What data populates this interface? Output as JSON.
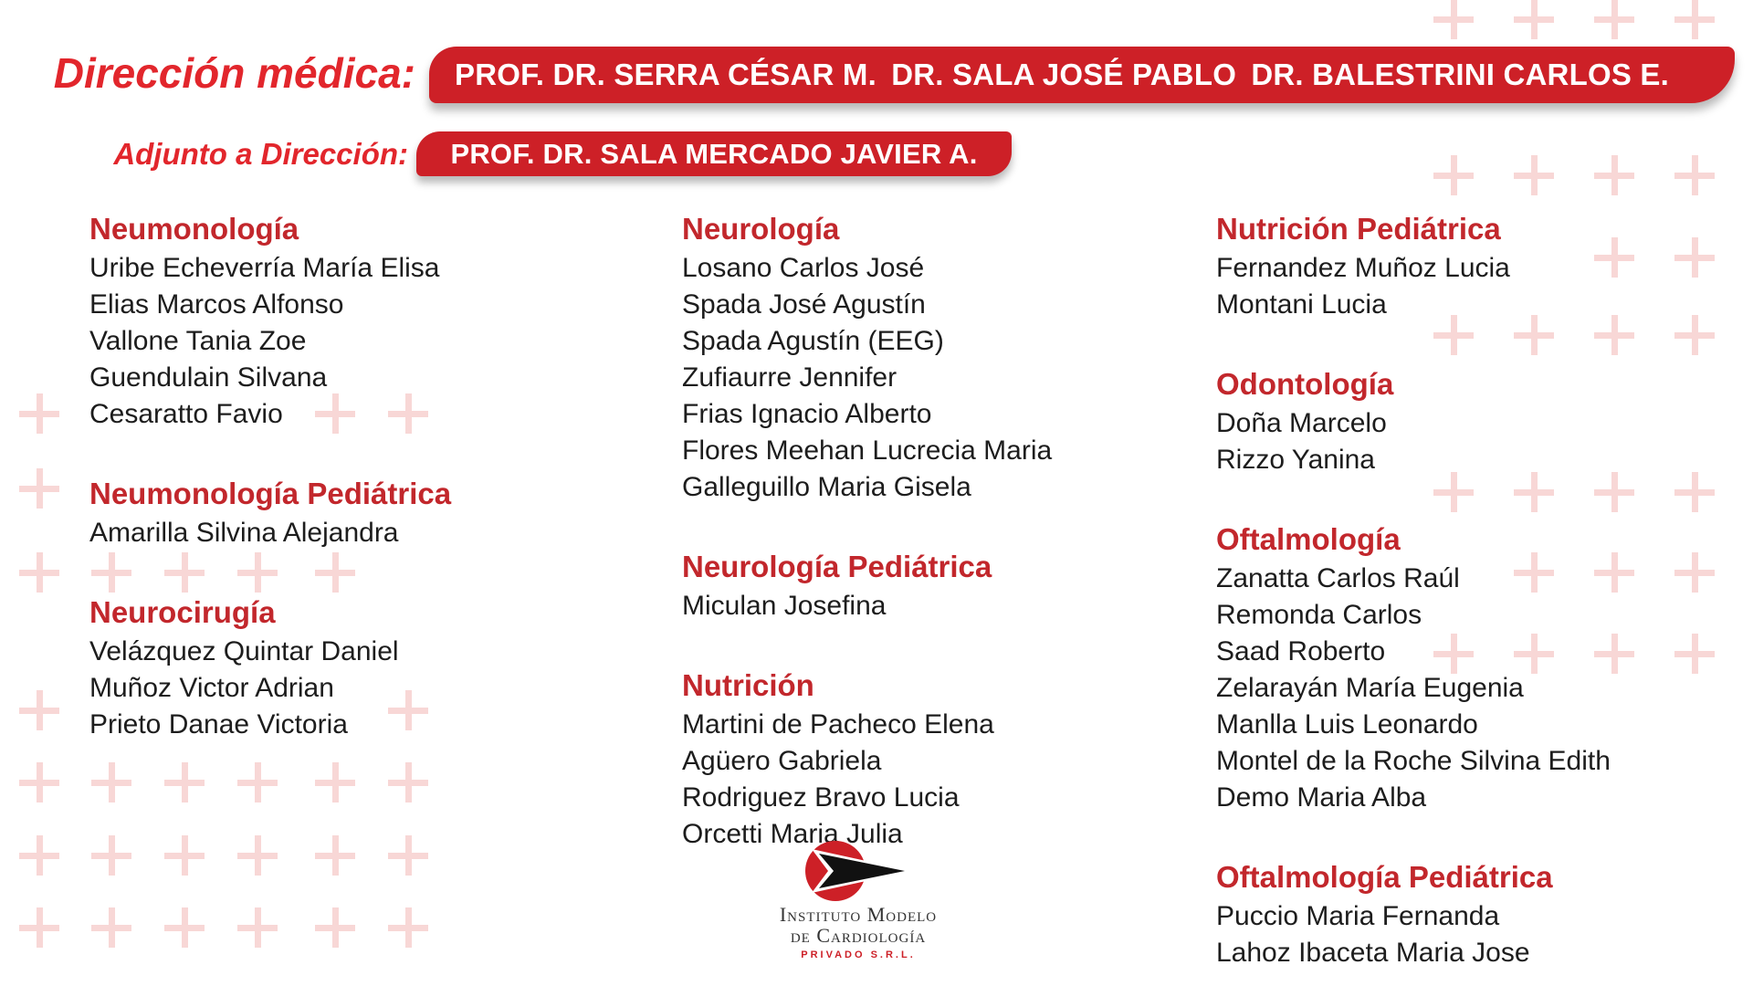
{
  "colors": {
    "banner_red": "#cd2027",
    "label_red": "#e2262c",
    "header_red": "#c2272c",
    "body_text": "#1d1d1d",
    "plus_pink": "#f8d7d6",
    "logo_red": "#cd2027"
  },
  "header": {
    "direccion_label": "Dirección médica:",
    "direccion_names": [
      "PROF. DR. SERRA CÉSAR M.",
      "DR. SALA JOSÉ PABLO",
      "DR. BALESTRINI CARLOS E."
    ],
    "adjunto_label": "Adjunto a Dirección:",
    "adjunto_name": "PROF. DR. SALA MERCADO JAVIER A."
  },
  "columns": [
    {
      "sections": [
        {
          "title": "Neumonología",
          "names": [
            "Uribe Echeverría María Elisa",
            "Elias Marcos Alfonso",
            "Vallone Tania Zoe",
            "Guendulain Silvana",
            "Cesaratto Favio"
          ]
        },
        {
          "title": "Neumonología Pediátrica",
          "names": [
            "Amarilla Silvina Alejandra"
          ]
        },
        {
          "title": "Neurocirugía",
          "names": [
            "Velázquez Quintar Daniel",
            "Muñoz Victor Adrian",
            "Prieto Danae Victoria"
          ]
        }
      ]
    },
    {
      "sections": [
        {
          "title": "Neurología",
          "names": [
            "Losano Carlos José",
            "Spada José Agustín",
            "Spada Agustín (EEG)",
            "Zufiaurre Jennifer",
            "Frias Ignacio Alberto",
            "Flores Meehan Lucrecia Maria",
            "Galleguillo Maria Gisela"
          ]
        },
        {
          "title": "Neurología Pediátrica",
          "names": [
            "Miculan Josefina"
          ]
        },
        {
          "title": "Nutrición",
          "names": [
            "Martini de Pacheco Elena",
            "Agüero Gabriela",
            "Rodriguez Bravo Lucia",
            "Orcetti Maria Julia"
          ]
        }
      ]
    },
    {
      "sections": [
        {
          "title": "Nutrición Pediátrica",
          "names": [
            "Fernandez Muñoz Lucia",
            "Montani Lucia"
          ]
        },
        {
          "title": "Odontología",
          "names": [
            "Doña Marcelo",
            "Rizzo Yanina"
          ]
        },
        {
          "title": "Oftalmología",
          "names": [
            "Zanatta Carlos Raúl",
            "Remonda Carlos",
            "Saad Roberto",
            "Zelarayán María Eugenia",
            "Manlla Luis Leonardo",
            "Montel de la Roche Silvina Edith",
            "Demo Maria Alba"
          ]
        },
        {
          "title": "Oftalmología Pediátrica",
          "names": [
            "Puccio Maria Fernanda",
            "Lahoz Ibaceta Maria Jose"
          ]
        }
      ]
    }
  ],
  "logo": {
    "line1": "Instituto Modelo",
    "line2": "de Cardiología",
    "line3": "PRIVADO S.R.L."
  }
}
